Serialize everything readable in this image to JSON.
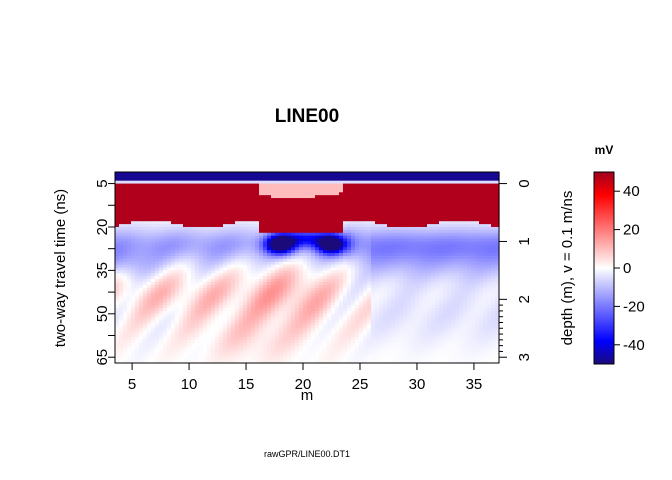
{
  "chart_data": {
    "type": "heatmap",
    "title": "LINE00",
    "xlabel": "m",
    "ylabel": "two-way travel time (ns)",
    "y2label": "depth (m),   v = 0.1 m/ns",
    "xlim": [
      3.5,
      37.2
    ],
    "ylim": [
      1,
      67
    ],
    "x_ticks": [
      5,
      10,
      15,
      20,
      25,
      30,
      35
    ],
    "y_ticks": [
      5,
      20,
      35,
      50,
      65
    ],
    "y2_ticks": [
      0,
      1,
      2,
      3
    ],
    "y2_extra_minor_ticks": 9,
    "colorbar": {
      "label": "mV",
      "range": [
        -50,
        50
      ],
      "ticks": [
        40,
        20,
        0,
        -20,
        -40
      ]
    },
    "caption": "rawGPR/LINE00.DT1",
    "features": [
      {
        "name": "surface-negative",
        "t_range": [
          1,
          4
        ],
        "value": -48
      },
      {
        "name": "direct-wave-positive",
        "t_range": [
          5,
          20
        ],
        "value": 48
      },
      {
        "name": "negative-band",
        "t_range": [
          20,
          33
        ],
        "value": -12
      },
      {
        "name": "anomaly-negative-left",
        "x": 18,
        "t": 26,
        "value": -48
      },
      {
        "name": "anomaly-negative-right",
        "x": 22.5,
        "t": 26,
        "value": -45
      }
    ],
    "colors": {
      "neg_max": "#1a0a7a",
      "neg": "#2040ff",
      "zero": "#ffffff",
      "pos": "#ff2020",
      "pos_max": "#a00020"
    }
  }
}
